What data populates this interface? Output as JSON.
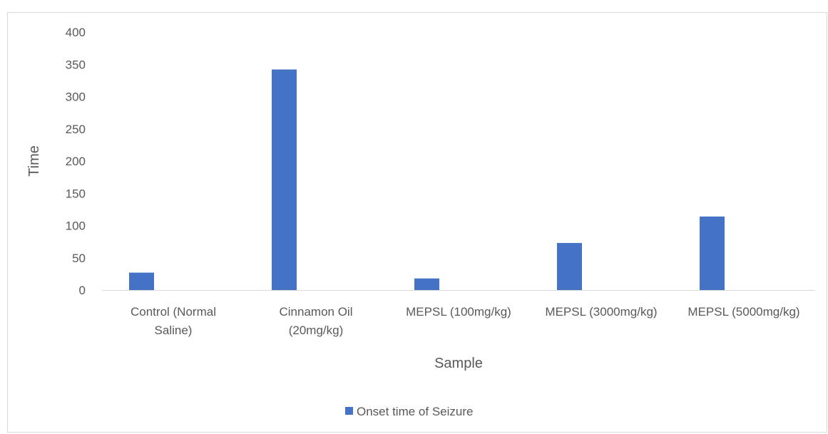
{
  "chart_data": {
    "type": "bar",
    "title": "",
    "xlabel": "Sample",
    "ylabel": "Time",
    "ylim": [
      0,
      400
    ],
    "yticks": [
      0,
      50,
      100,
      150,
      200,
      250,
      300,
      350,
      400
    ],
    "grid": false,
    "legend_position": "bottom",
    "categories": [
      [
        "Control (Normal",
        "Saline)"
      ],
      [
        "Cinnamon Oil",
        "(20mg/kg)"
      ],
      [
        "MEPSL (100mg/kg)"
      ],
      [
        "MEPSL (3000mg/kg)"
      ],
      [
        "MEPSL (5000mg/kg)"
      ]
    ],
    "series": [
      {
        "name": "Onset time of Seizure",
        "color": "#4472c4",
        "values": [
          27,
          342,
          18,
          73,
          114
        ]
      }
    ]
  }
}
